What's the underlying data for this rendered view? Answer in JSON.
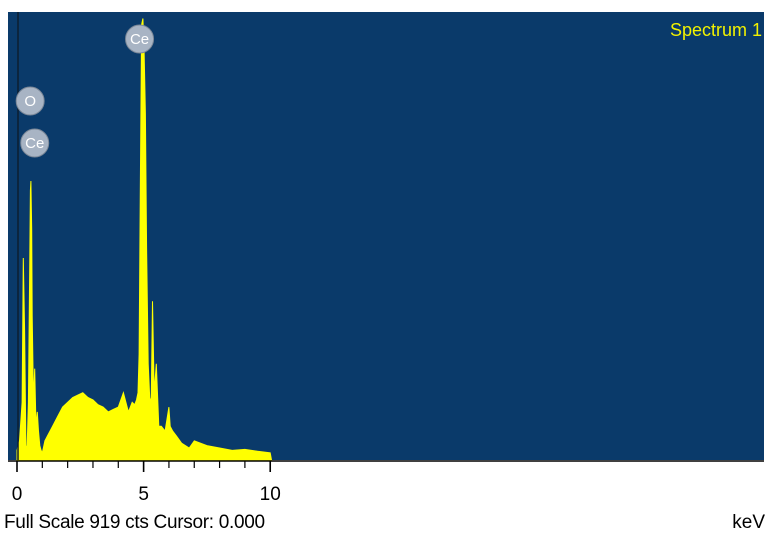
{
  "spectrum": {
    "label": "Spectrum 1",
    "status": "Full Scale 919 cts Cursor: 0.000",
    "unit": "keV"
  },
  "colors": {
    "background": "#0a3a6a",
    "trace": "#ffff00",
    "badge": "#a8b4c4",
    "label": "#f2f200"
  },
  "chart_data": {
    "type": "area",
    "xlabel": "keV",
    "ylabel": "",
    "xlim": [
      0,
      29.5
    ],
    "ylim": [
      0,
      919
    ],
    "x_ticks_major": [
      0,
      5,
      10
    ],
    "x": [
      0.0,
      0.1,
      0.2,
      0.25,
      0.3,
      0.35,
      0.4,
      0.45,
      0.5,
      0.53,
      0.55,
      0.58,
      0.6,
      0.65,
      0.7,
      0.75,
      0.8,
      0.85,
      0.9,
      0.95,
      1.0,
      1.1,
      1.2,
      1.4,
      1.6,
      1.8,
      2.0,
      2.2,
      2.4,
      2.6,
      2.8,
      3.0,
      3.2,
      3.4,
      3.6,
      3.8,
      4.0,
      4.2,
      4.4,
      4.55,
      4.65,
      4.72,
      4.78,
      4.82,
      4.87,
      4.92,
      4.97,
      5.02,
      5.07,
      5.12,
      5.18,
      5.24,
      5.3,
      5.35,
      5.42,
      5.5,
      5.6,
      5.7,
      5.85,
      6.0,
      6.05,
      6.15,
      6.3,
      6.5,
      6.8,
      7.0,
      7.5,
      8.0,
      8.5,
      9.0,
      9.5,
      10.0,
      10.05
    ],
    "y": [
      20,
      40,
      120,
      420,
      270,
      30,
      25,
      120,
      400,
      560,
      580,
      480,
      300,
      120,
      190,
      70,
      100,
      60,
      30,
      20,
      15,
      40,
      50,
      70,
      90,
      110,
      120,
      130,
      135,
      140,
      130,
      125,
      115,
      110,
      100,
      105,
      110,
      140,
      100,
      120,
      115,
      125,
      140,
      220,
      560,
      905,
      918,
      850,
      720,
      440,
      200,
      130,
      120,
      330,
      140,
      200,
      70,
      70,
      60,
      110,
      70,
      60,
      50,
      35,
      25,
      40,
      30,
      25,
      20,
      22,
      18,
      15,
      0
    ],
    "annotations": [
      {
        "label": "O",
        "x": 0.52
      },
      {
        "label": "Ce",
        "x": 0.7
      },
      {
        "label": "Ce",
        "x": 4.84
      }
    ]
  }
}
